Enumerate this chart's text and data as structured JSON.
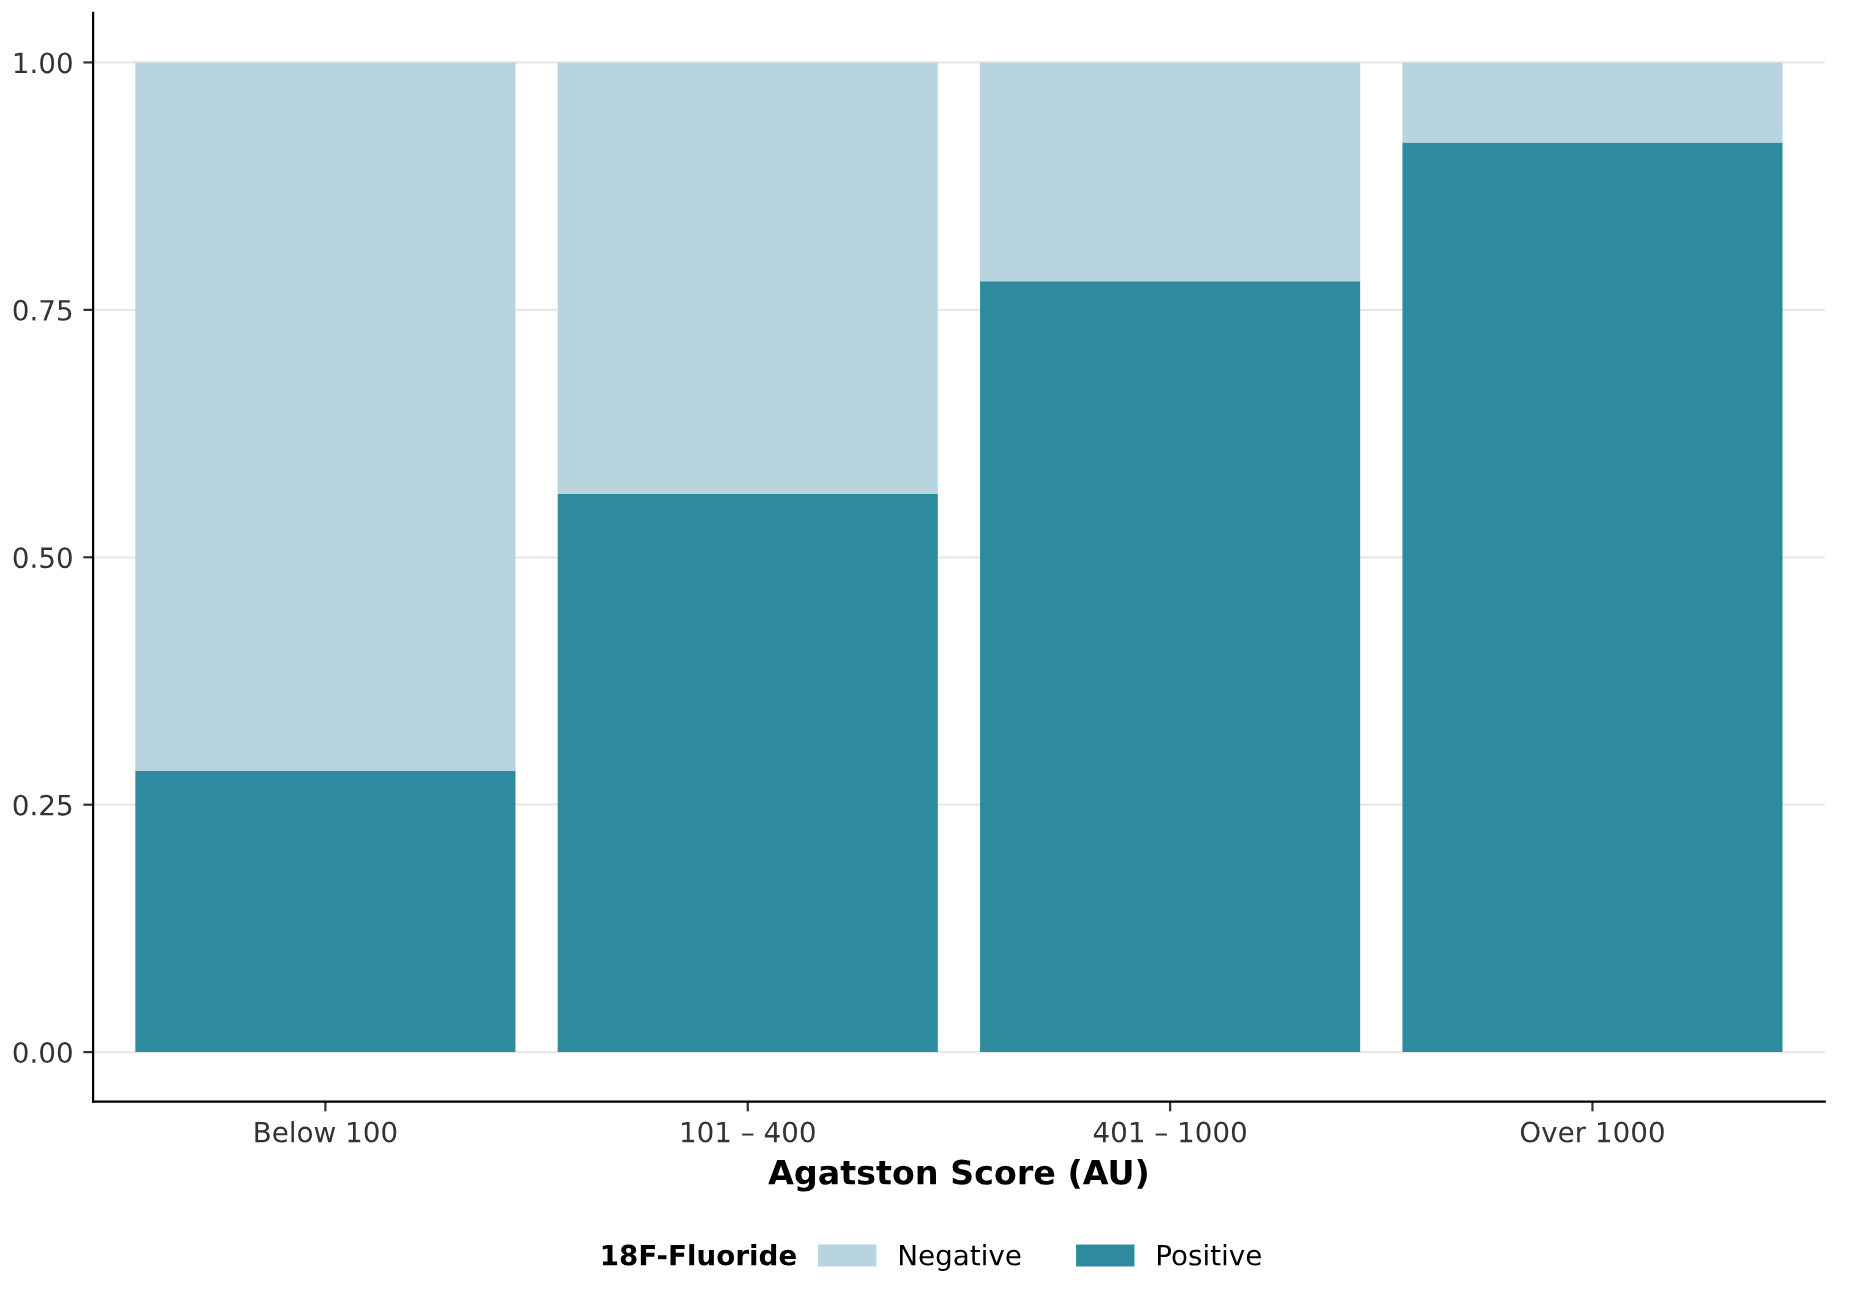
{
  "chart_data": {
    "type": "bar",
    "stacked": true,
    "xlabel": "Agatston Score (AU)",
    "legend_title": "18F-Fluoride",
    "categories": [
      "Below 100",
      "101 – 400",
      "401 – 1000",
      "Over 1000"
    ],
    "series": [
      {
        "name": "Positive",
        "color": "#2e8a9e",
        "values": [
          0.284,
          0.564,
          0.779,
          0.919
        ]
      },
      {
        "name": "Negative",
        "color": "#b8d4de",
        "values": [
          0.716,
          0.436,
          0.221,
          0.081
        ]
      }
    ],
    "ylim": [
      -0.05,
      1.05
    ],
    "yticks": [
      {
        "value": 0,
        "label": "0.00"
      },
      {
        "value": 0.25,
        "label": "0.25"
      },
      {
        "value": 0.5,
        "label": "0.50"
      },
      {
        "value": 0.75,
        "label": "0.75"
      },
      {
        "value": 1,
        "label": "1.00"
      }
    ],
    "grid": "y",
    "legend": "bottom"
  }
}
